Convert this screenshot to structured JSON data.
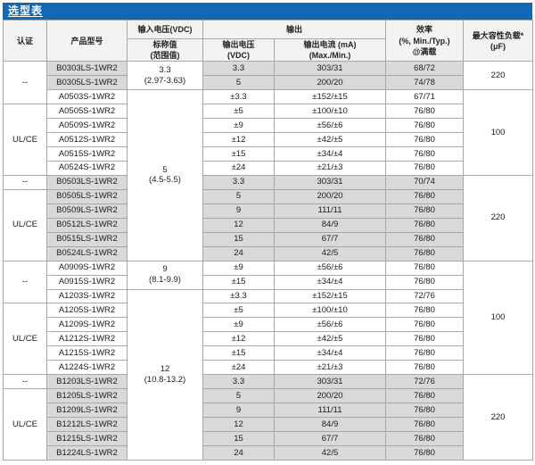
{
  "title": "选型表",
  "colors": {
    "accent": "#1268b2",
    "row_shade": "#d9d9d9",
    "header_bg": "#f3f3f3",
    "border": "#a8a8a8"
  },
  "table": {
    "header": {
      "cert": "认证",
      "model": "产品型号",
      "vin": "输入电压(VDC)",
      "vin_sub": "标称值\n(范围值)",
      "output": "输出",
      "vout": "输出电压\n(VDC)",
      "iout": "输出电流 (mA)\n(Max./Min.)",
      "eff": "效率\n(%, Min./Typ.)\n@满载",
      "cap": "最大容性负载*\n(μF)"
    },
    "cert_groups": [
      {
        "label": "--",
        "start": 0,
        "span": 3
      },
      {
        "label": "UL/CE",
        "start": 3,
        "span": 5
      },
      {
        "label": "--",
        "start": 8,
        "span": 1
      },
      {
        "label": "UL/CE",
        "start": 9,
        "span": 5
      },
      {
        "label": "--",
        "start": 14,
        "span": 3
      },
      {
        "label": "UL/CE",
        "start": 17,
        "span": 5
      },
      {
        "label": "--",
        "start": 22,
        "span": 1
      },
      {
        "label": "UL/CE",
        "start": 23,
        "span": 5
      }
    ],
    "vin_groups": [
      {
        "label": "3.3\n(2.97-3.63)",
        "start": 0,
        "span": 2
      },
      {
        "label": "5\n(4.5-5.5)",
        "start": 2,
        "span": 12
      },
      {
        "label": "9\n(8.1-9.9)",
        "start": 14,
        "span": 2
      },
      {
        "label": "12\n(10.8-13.2)",
        "start": 16,
        "span": 12
      }
    ],
    "cap_groups": [
      {
        "label": "220",
        "start": 0,
        "span": 2
      },
      {
        "label": "100",
        "start": 2,
        "span": 6
      },
      {
        "label": "220",
        "start": 8,
        "span": 6
      },
      {
        "label": "100",
        "start": 14,
        "span": 8
      },
      {
        "label": "220",
        "start": 22,
        "span": 6
      }
    ],
    "rows": [
      {
        "model": "B0303LS-1WR2",
        "vout": "3.3",
        "iout": "303/31",
        "eff": "68/72",
        "shaded": true
      },
      {
        "model": "B0305LS-1WR2",
        "vout": "5",
        "iout": "200/20",
        "eff": "74/78",
        "shaded": true
      },
      {
        "model": "A0503S-1WR2",
        "vout": "±3.3",
        "iout": "±152/±15",
        "eff": "67/71",
        "shaded": false
      },
      {
        "model": "A0505S-1WR2",
        "vout": "±5",
        "iout": "±100/±10",
        "eff": "76/80",
        "shaded": false
      },
      {
        "model": "A0509S-1WR2",
        "vout": "±9",
        "iout": "±56/±6",
        "eff": "76/80",
        "shaded": false
      },
      {
        "model": "A0512S-1WR2",
        "vout": "±12",
        "iout": "±42/±5",
        "eff": "76/80",
        "shaded": false
      },
      {
        "model": "A0515S-1WR2",
        "vout": "±15",
        "iout": "±34/±4",
        "eff": "76/80",
        "shaded": false
      },
      {
        "model": "A0524S-1WR2",
        "vout": "±24",
        "iout": "±21/±3",
        "eff": "76/80",
        "shaded": false
      },
      {
        "model": "B0503LS-1WR2",
        "vout": "3.3",
        "iout": "303/31",
        "eff": "70/74",
        "shaded": true
      },
      {
        "model": "B0505LS-1WR2",
        "vout": "5",
        "iout": "200/20",
        "eff": "76/80",
        "shaded": true
      },
      {
        "model": "B0509LS-1WR2",
        "vout": "9",
        "iout": "111/11",
        "eff": "76/80",
        "shaded": true
      },
      {
        "model": "B0512LS-1WR2",
        "vout": "12",
        "iout": "84/9",
        "eff": "76/80",
        "shaded": true
      },
      {
        "model": "B0515LS-1WR2",
        "vout": "15",
        "iout": "67/7",
        "eff": "76/80",
        "shaded": true
      },
      {
        "model": "B0524LS-1WR2",
        "vout": "24",
        "iout": "42/5",
        "eff": "76/80",
        "shaded": true
      },
      {
        "model": "A0909S-1WR2",
        "vout": "±9",
        "iout": "±56/±6",
        "eff": "76/80",
        "shaded": false
      },
      {
        "model": "A0915S-1WR2",
        "vout": "±15",
        "iout": "±34/±4",
        "eff": "76/80",
        "shaded": false
      },
      {
        "model": "A1203S-1WR2",
        "vout": "±3.3",
        "iout": "±152/±15",
        "eff": "72/76",
        "shaded": false
      },
      {
        "model": "A1205S-1WR2",
        "vout": "±5",
        "iout": "±100/±10",
        "eff": "76/80",
        "shaded": false
      },
      {
        "model": "A1209S-1WR2",
        "vout": "±9",
        "iout": "±56/±6",
        "eff": "76/80",
        "shaded": false
      },
      {
        "model": "A1212S-1WR2",
        "vout": "±12",
        "iout": "±42/±5",
        "eff": "76/80",
        "shaded": false
      },
      {
        "model": "A1215S-1WR2",
        "vout": "±15",
        "iout": "±34/±4",
        "eff": "76/80",
        "shaded": false
      },
      {
        "model": "A1224S-1WR2",
        "vout": "±24",
        "iout": "±21/±3",
        "eff": "76/80",
        "shaded": false
      },
      {
        "model": "B1203LS-1WR2",
        "vout": "3.3",
        "iout": "303/31",
        "eff": "72/76",
        "shaded": true
      },
      {
        "model": "B1205LS-1WR2",
        "vout": "5",
        "iout": "200/20",
        "eff": "76/80",
        "shaded": true
      },
      {
        "model": "B1209LS-1WR2",
        "vout": "9",
        "iout": "111/11",
        "eff": "76/80",
        "shaded": true
      },
      {
        "model": "B1212LS-1WR2",
        "vout": "12",
        "iout": "84/9",
        "eff": "76/80",
        "shaded": true
      },
      {
        "model": "B1215LS-1WR2",
        "vout": "15",
        "iout": "67/7",
        "eff": "76/80",
        "shaded": true
      },
      {
        "model": "B1224LS-1WR2",
        "vout": "24",
        "iout": "42/5",
        "eff": "76/80",
        "shaded": true
      }
    ]
  }
}
